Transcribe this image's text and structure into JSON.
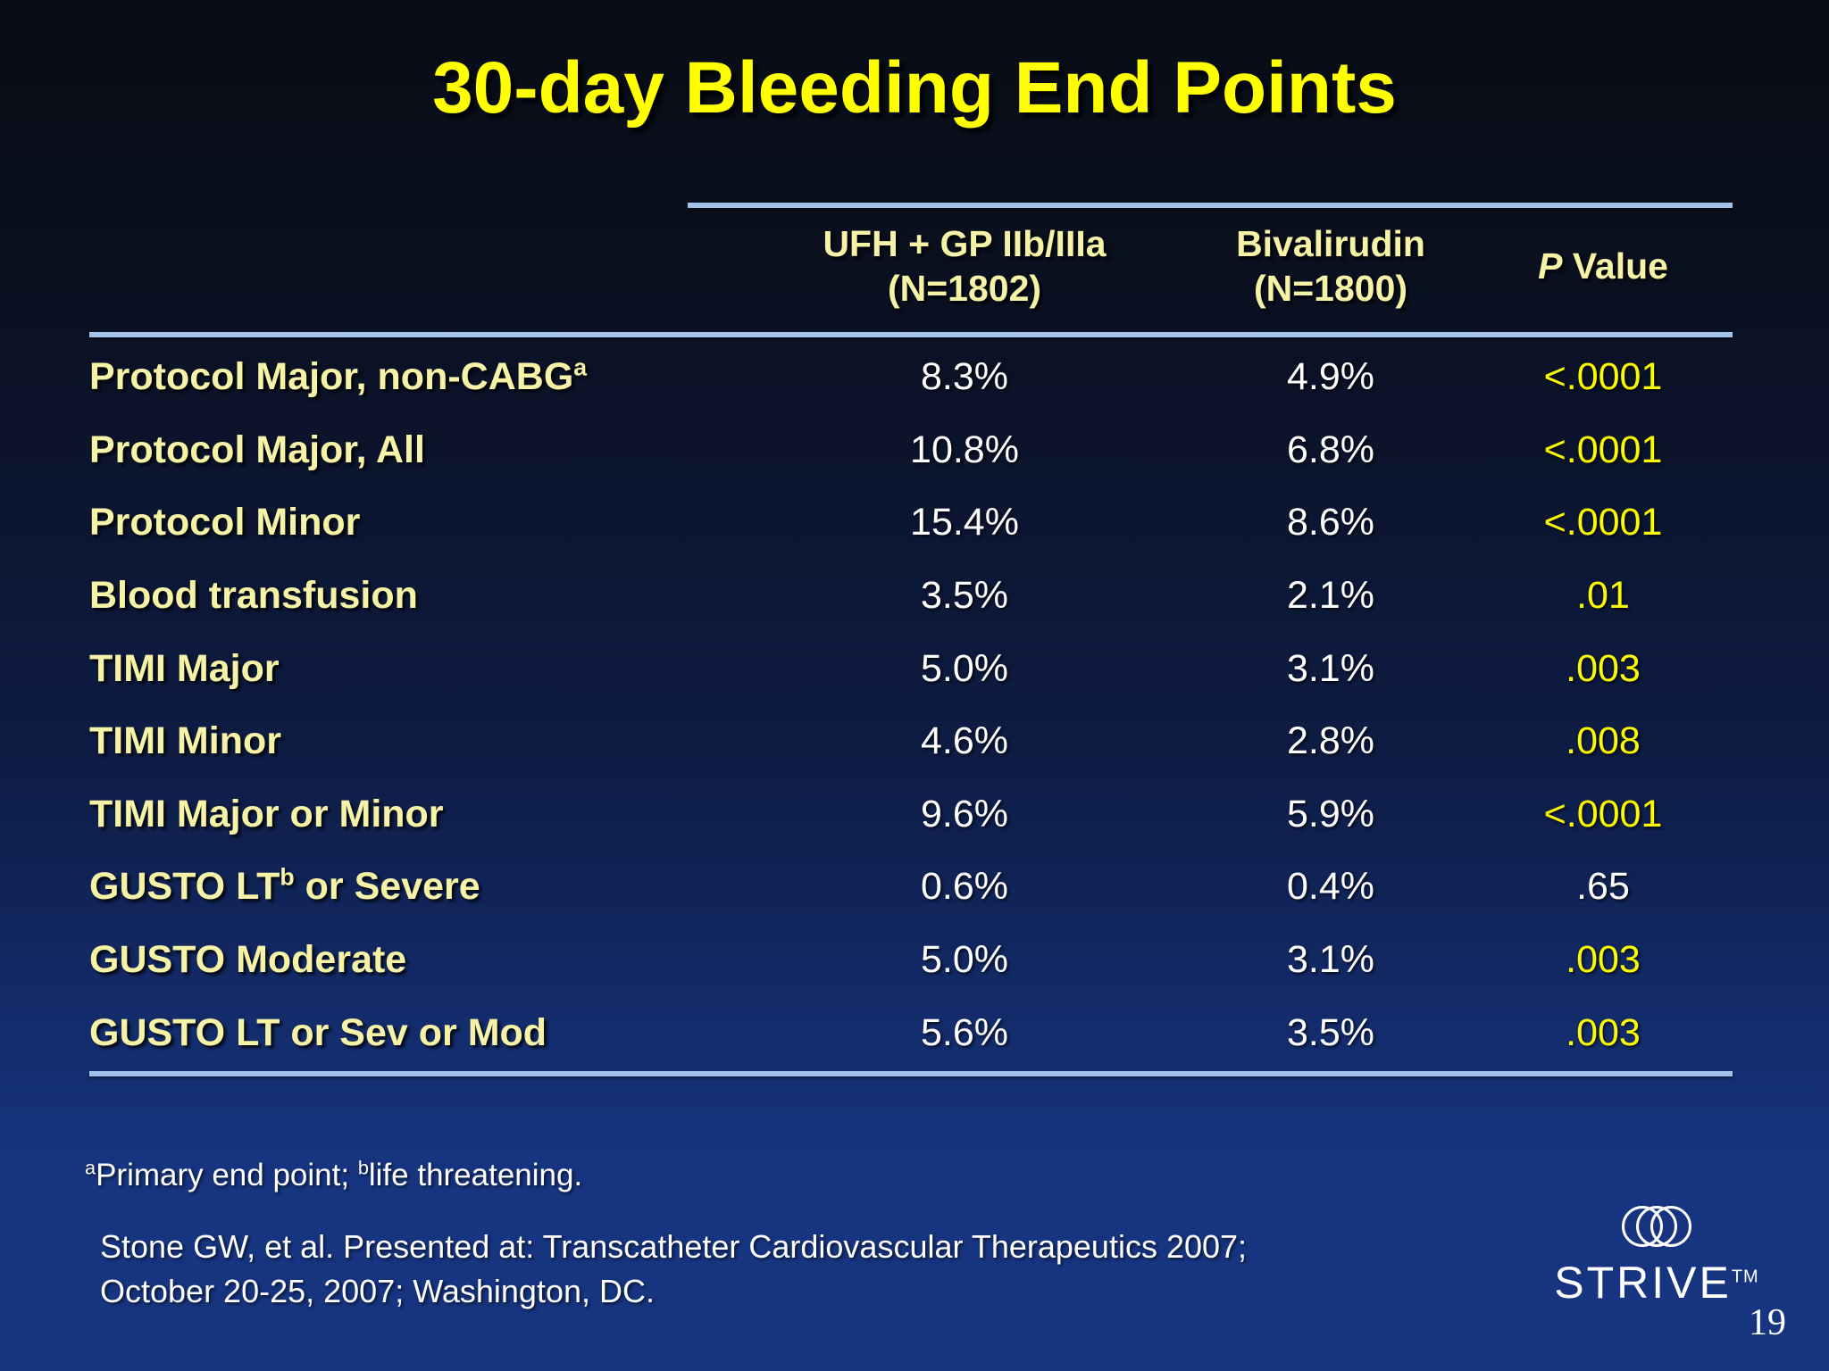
{
  "slide": {
    "title": "30-day Bleeding End Points",
    "page_number": "19"
  },
  "table": {
    "columns": {
      "treatment1": {
        "line1": "UFH + GP IIb/IIIa",
        "line2": "(N=1802)"
      },
      "treatment2": {
        "line1": "Bivalirudin",
        "line2": "(N=1800)"
      },
      "p": {
        "italic": "P",
        "rest": " Value"
      }
    },
    "rows": [
      {
        "label_pre": "Protocol Major, non-CABG",
        "label_sup": "a",
        "label_post": "",
        "ufh": "8.3%",
        "biv": "4.9%",
        "p": "<.0001",
        "p_highlight": true
      },
      {
        "label_pre": "Protocol Major, All",
        "label_sup": "",
        "label_post": "",
        "ufh": "10.8%",
        "biv": "6.8%",
        "p": "<.0001",
        "p_highlight": true
      },
      {
        "label_pre": "Protocol Minor",
        "label_sup": "",
        "label_post": "",
        "ufh": "15.4%",
        "biv": "8.6%",
        "p": "<.0001",
        "p_highlight": true
      },
      {
        "label_pre": "Blood transfusion",
        "label_sup": "",
        "label_post": "",
        "ufh": "3.5%",
        "biv": "2.1%",
        "p": ".01",
        "p_highlight": true
      },
      {
        "label_pre": "TIMI Major",
        "label_sup": "",
        "label_post": "",
        "ufh": "5.0%",
        "biv": "3.1%",
        "p": ".003",
        "p_highlight": true
      },
      {
        "label_pre": "TIMI Minor",
        "label_sup": "",
        "label_post": "",
        "ufh": "4.6%",
        "biv": "2.8%",
        "p": ".008",
        "p_highlight": true
      },
      {
        "label_pre": "TIMI Major or Minor",
        "label_sup": "",
        "label_post": "",
        "ufh": "9.6%",
        "biv": "5.9%",
        "p": "<.0001",
        "p_highlight": true
      },
      {
        "label_pre": "GUSTO LT",
        "label_sup": "b",
        "label_post": " or Severe",
        "ufh": "0.6%",
        "biv": "0.4%",
        "p": ".65",
        "p_highlight": false
      },
      {
        "label_pre": "GUSTO Moderate",
        "label_sup": "",
        "label_post": "",
        "ufh": "5.0%",
        "biv": "3.1%",
        "p": ".003",
        "p_highlight": true
      },
      {
        "label_pre": "GUSTO LT or Sev or Mod",
        "label_sup": "",
        "label_post": "",
        "ufh": "5.6%",
        "biv": "3.5%",
        "p": ".003",
        "p_highlight": true
      }
    ]
  },
  "footnote": {
    "sup1": "a",
    "text1": "Primary end point; ",
    "sup2": "b",
    "text2": "life threatening."
  },
  "citation": {
    "line1": "Stone GW, et al. Presented at: Transcatheter Cardiovascular Therapeutics 2007;",
    "line2": "October 20-25, 2007; Washington, DC."
  },
  "logo": {
    "name": "STRIVE",
    "tm": "TM",
    "icon": "three-overlapping-circles-icon"
  },
  "palette": {
    "background_top": "#080c15",
    "background_bottom": "#17357f",
    "title_yellow": "#ffff00",
    "label_pale_yellow": "#f6f3a7",
    "value_white": "#ffffff",
    "p_value_yellow": "#fcfc00",
    "rule_light_blue": "#a3c3ea"
  }
}
